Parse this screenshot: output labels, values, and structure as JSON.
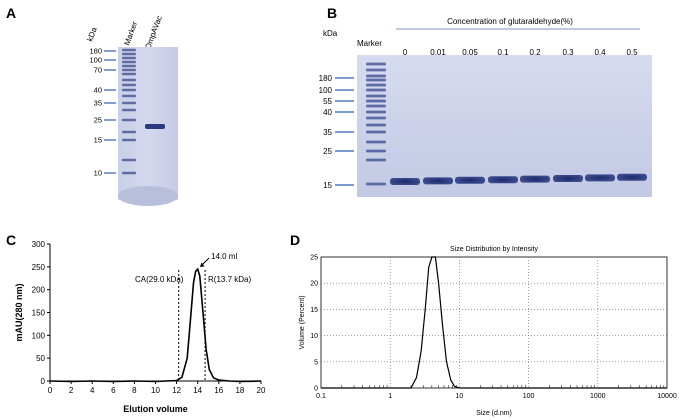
{
  "panels": {
    "A": {
      "letter": "A",
      "unit": "kDa",
      "lanes": [
        "Marker",
        "OmpAVac"
      ],
      "mw_labels": [
        "180",
        "100",
        "70",
        "40",
        "35",
        "25",
        "15",
        "10"
      ]
    },
    "B": {
      "letter": "B",
      "unit": "kDa",
      "marker_label": "Marker",
      "title": "Concentration of glutaraldehyde(%)",
      "concentrations": [
        "0",
        "0.01",
        "0.05",
        "0.1",
        "0.2",
        "0.3",
        "0.4",
        "0.5"
      ],
      "mw_labels": [
        "180",
        "100",
        "55",
        "40",
        "35",
        "25",
        "15"
      ]
    },
    "C": {
      "letter": "C",
      "annotations": {
        "peak": "14.0 ml",
        "ca": "CA(29.0 kDa)",
        "r": "R(13.7 kDa)"
      }
    },
    "D": {
      "letter": "D"
    }
  },
  "chart_data": [
    {
      "panel": "C",
      "type": "line",
      "title": "",
      "xlabel": "Elution volume",
      "ylabel": "mAU(280 nm)",
      "xlim": [
        0,
        20
      ],
      "ylim": [
        0,
        300
      ],
      "xticks": [
        "0",
        "2",
        "4",
        "6",
        "8",
        "10",
        "12",
        "14",
        "16",
        "18",
        "20"
      ],
      "yticks": [
        "0",
        "50",
        "100",
        "150",
        "200",
        "250",
        "300"
      ],
      "grid": false,
      "reference_lines_x": [
        12.2,
        14.7
      ],
      "x": [
        0,
        2,
        4,
        6,
        8,
        10,
        11,
        12,
        12.5,
        13.0,
        13.3,
        13.6,
        13.8,
        14.0,
        14.2,
        14.5,
        14.8,
        15.1,
        15.5,
        16,
        17,
        18,
        20
      ],
      "y": [
        0,
        -1,
        0,
        -1,
        0,
        -1,
        0,
        1,
        8,
        50,
        130,
        215,
        240,
        245,
        230,
        150,
        70,
        25,
        7,
        2,
        0,
        -1,
        0
      ]
    },
    {
      "panel": "D",
      "type": "line",
      "title": "Size Distribution by Intensity",
      "xlabel": "Size (d.nm)",
      "ylabel": "Volume (Percent)",
      "xscale": "log",
      "xlim": [
        0.1,
        10000
      ],
      "ylim": [
        0,
        25
      ],
      "xticks": [
        "0.1",
        "1",
        "10",
        "100",
        "1000",
        "10000"
      ],
      "yticks": [
        "0",
        "5",
        "10",
        "15",
        "20",
        "25"
      ],
      "grid": true,
      "x": [
        0.1,
        1,
        2.0,
        2.4,
        2.8,
        3.2,
        3.6,
        4.0,
        4.5,
        5.0,
        5.7,
        6.5,
        7.5,
        8.5,
        10,
        100,
        1000,
        10000
      ],
      "y": [
        0,
        0,
        0,
        2,
        7,
        15,
        23,
        25,
        25,
        20,
        12,
        5,
        1.5,
        0.3,
        0,
        0,
        0,
        0
      ]
    }
  ]
}
